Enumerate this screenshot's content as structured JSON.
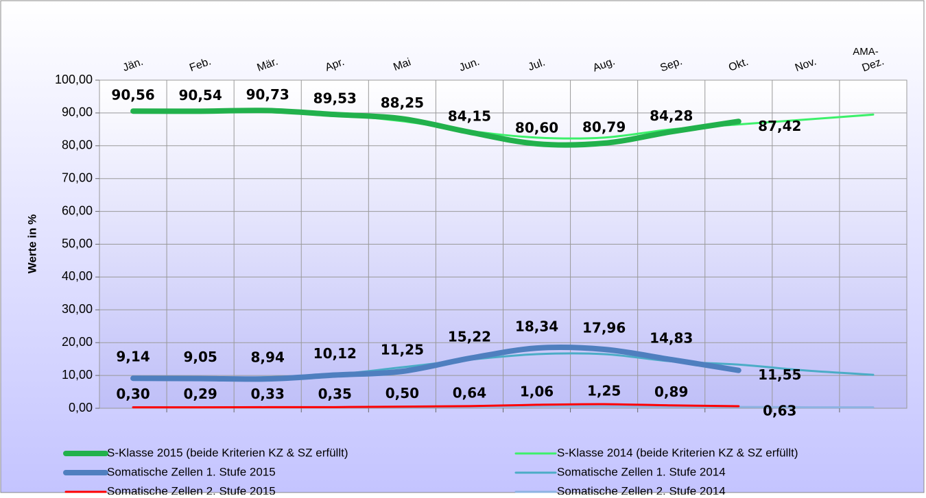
{
  "chart_data": {
    "type": "line",
    "y_label": "Werte in %",
    "annotation": "AMA-",
    "categories": [
      "Jän.",
      "Feb.",
      "Mär.",
      "Apr.",
      "Mai",
      "Jun.",
      "Jul.",
      "Aug.",
      "Sep.",
      "Okt.",
      "Nov.",
      "Dez."
    ],
    "ylim": [
      0,
      100
    ],
    "yticks": [
      {
        "value": 0,
        "label": "0,00"
      },
      {
        "value": 10,
        "label": "10,00"
      },
      {
        "value": 20,
        "label": "20,00"
      },
      {
        "value": 30,
        "label": "30,00"
      },
      {
        "value": 40,
        "label": "40,00"
      },
      {
        "value": 50,
        "label": "50,00"
      },
      {
        "value": 60,
        "label": "60,00"
      },
      {
        "value": 70,
        "label": "70,00"
      },
      {
        "value": 80,
        "label": "80,00"
      },
      {
        "value": 90,
        "label": "90,00"
      },
      {
        "value": 100,
        "label": "100,00"
      }
    ],
    "grid": true,
    "series": [
      {
        "name": "S-Klasse 2015 (beide Kriterien KZ & SZ erfüllt)",
        "color": "#22b14c",
        "width": 8,
        "values": [
          90.56,
          90.54,
          90.73,
          89.53,
          88.25,
          84.15,
          80.6,
          80.79,
          84.28,
          87.42,
          null,
          null
        ],
        "value_labels": [
          "90,56",
          "90,54",
          "90,73",
          "89,53",
          "88,25",
          "84,15",
          "80,60",
          "80,79",
          "84,28",
          "87,42",
          null,
          null
        ]
      },
      {
        "name": "S-Klasse 2014 (beide Kriterien KZ & SZ erfüllt)",
        "color": "#3cf06a",
        "width": 3,
        "values": [
          90.3,
          90.6,
          90.5,
          89.5,
          87.5,
          84.5,
          82.5,
          82.5,
          85.0,
          86.5,
          88.0,
          89.5
        ]
      },
      {
        "name": "Somatische Zellen 1. Stufe 2015",
        "color": "#4f7fbf",
        "width": 8,
        "values": [
          9.14,
          9.05,
          8.94,
          10.12,
          11.25,
          15.22,
          18.34,
          17.96,
          14.83,
          11.55,
          null,
          null
        ],
        "value_labels": [
          "9,14",
          "9,05",
          "8,94",
          "10,12",
          "11,25",
          "15,22",
          "18,34",
          "17,96",
          "14,83",
          "11,55",
          null,
          null
        ]
      },
      {
        "name": "Somatische Zellen 1. Stufe 2014",
        "color": "#4bacc6",
        "width": 3,
        "values": [
          9.3,
          9.2,
          9.5,
          10.3,
          12.5,
          14.8,
          16.5,
          16.5,
          14.3,
          13.3,
          11.5,
          10.2
        ]
      },
      {
        "name": "Somatische Zellen 2. Stufe 2015",
        "color": "#ff0000",
        "width": 3,
        "values": [
          0.3,
          0.29,
          0.33,
          0.35,
          0.5,
          0.64,
          1.06,
          1.25,
          0.89,
          0.63,
          null,
          null
        ],
        "value_labels": [
          "0,30",
          "0,29",
          "0,33",
          "0,35",
          "0,50",
          "0,64",
          "1,06",
          "1,25",
          "0,89",
          "0,63",
          null,
          null
        ]
      },
      {
        "name": "Somatische Zellen 2. Stufe 2014",
        "color": "#8db3e2",
        "width": 3,
        "values": [
          0.3,
          0.3,
          0.3,
          0.3,
          0.4,
          0.5,
          0.6,
          0.6,
          0.5,
          0.4,
          0.3,
          0.3
        ]
      }
    ]
  }
}
